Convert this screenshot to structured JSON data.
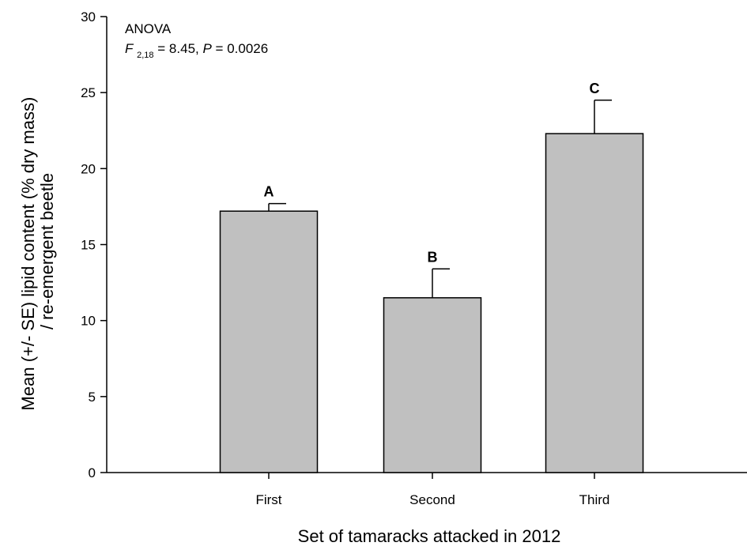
{
  "chart_data": {
    "type": "bar",
    "categories": [
      "First",
      "Second",
      "Third"
    ],
    "values": [
      17.2,
      11.5,
      22.3
    ],
    "errors": [
      0.5,
      1.9,
      2.2
    ],
    "significance_letters": [
      "A",
      "B",
      "C"
    ],
    "xlabel": "Set of tamaracks attacked in 2012",
    "ylabel_lines": [
      "Mean (+/- SE) lipid content (% dry mass)",
      "/ re-emergent beetle"
    ],
    "ylim": [
      0,
      30
    ],
    "yticks": [
      0,
      5,
      10,
      15,
      20,
      25,
      30
    ],
    "grid": false,
    "bar_color": "#c0c0c0",
    "annotation": {
      "title": "ANOVA",
      "f_symbol": "F",
      "f_subscript": "2,18",
      "f_rest": " = 8.45, ",
      "p_symbol": "P",
      "p_rest": " = 0.0026"
    }
  }
}
